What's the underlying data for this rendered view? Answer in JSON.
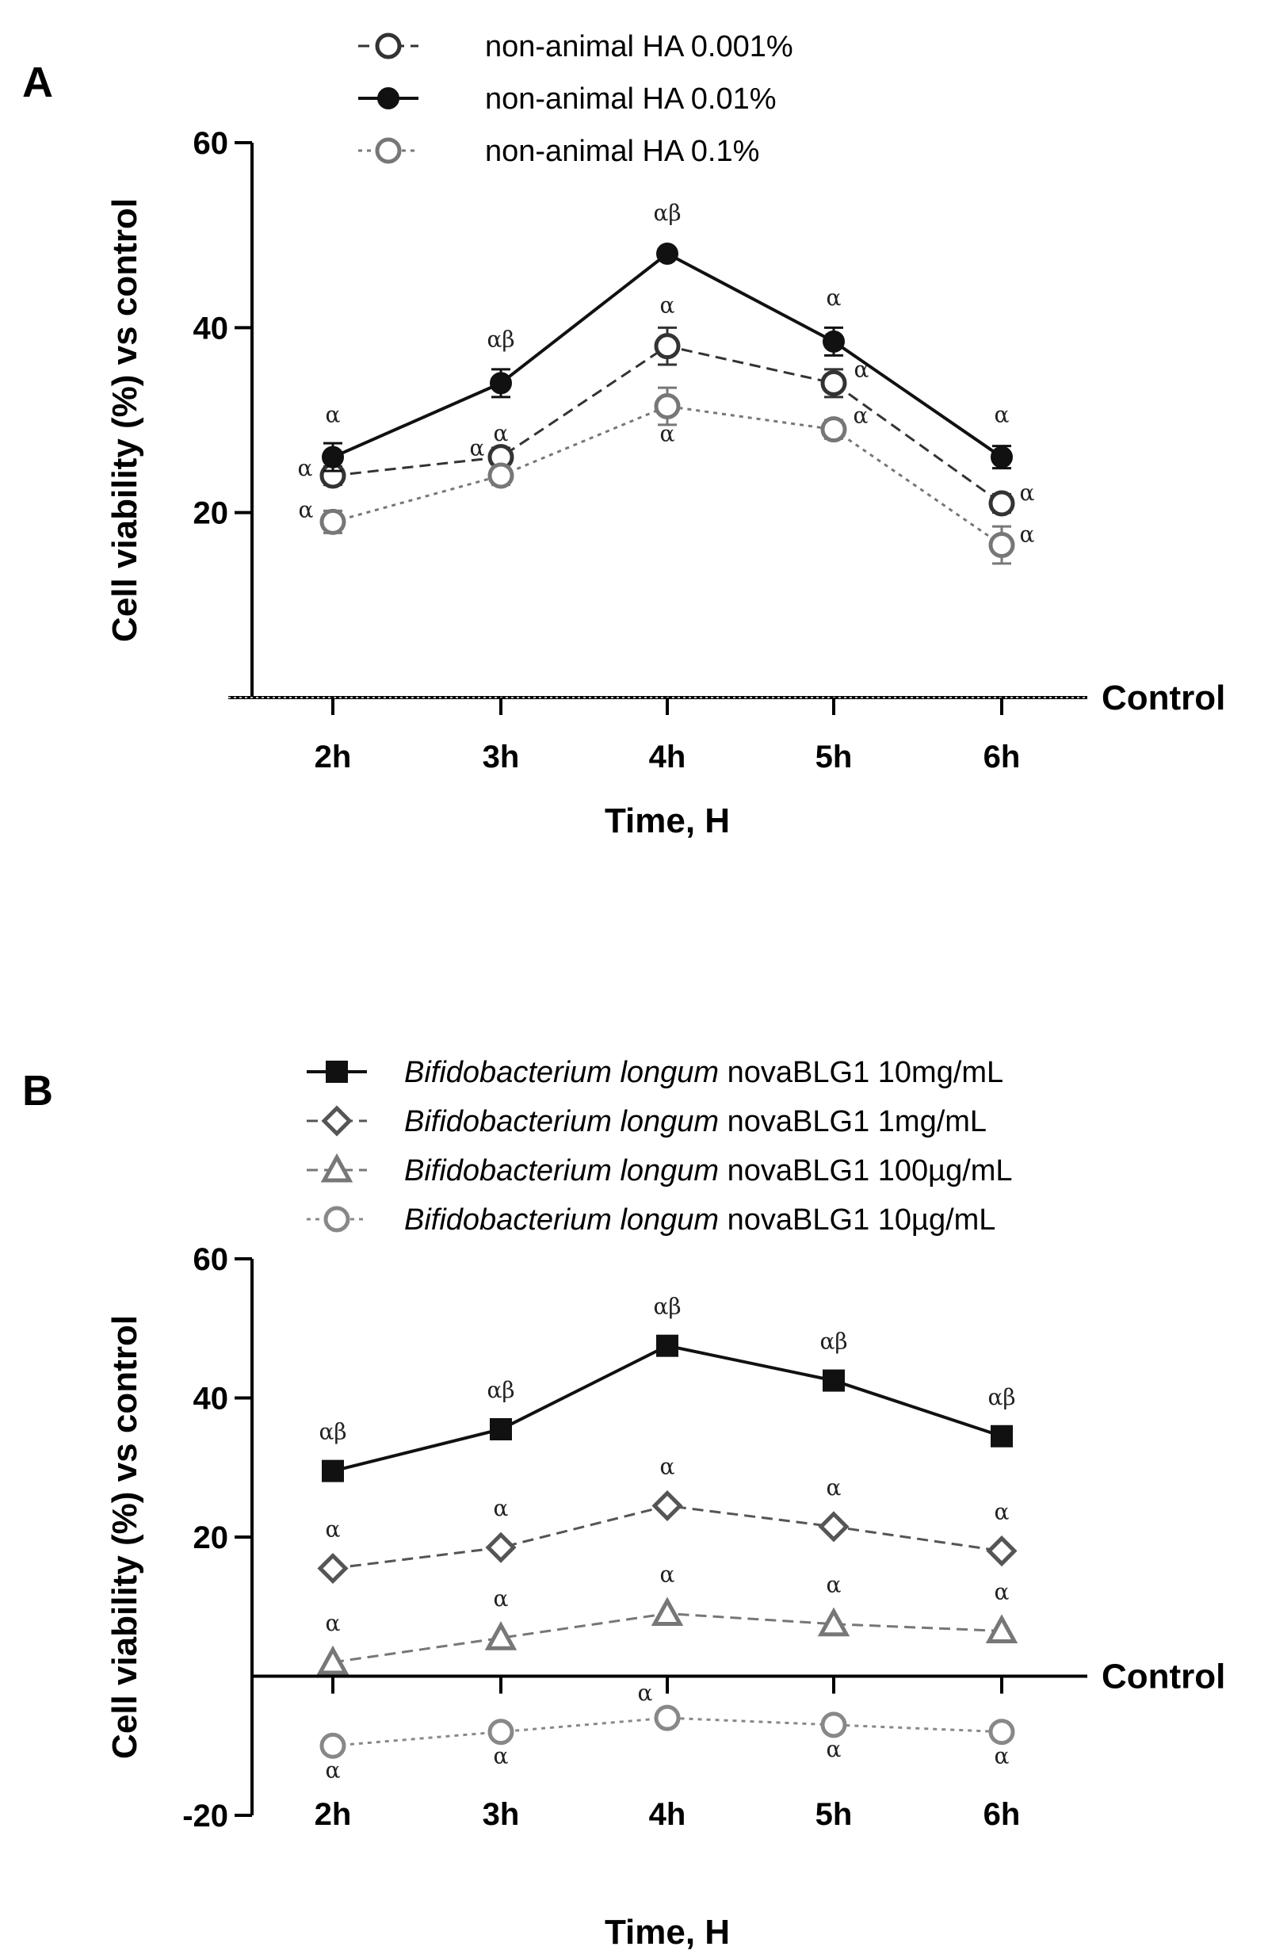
{
  "chart_data": [
    {
      "panel": "A",
      "type": "line",
      "ylabel": "Cell viability (%) vs control",
      "xlabel": "Time, H",
      "categories": [
        "2h",
        "3h",
        "4h",
        "5h",
        "6h"
      ],
      "ylim": [
        0,
        60
      ],
      "yticks": [
        20,
        40,
        60
      ],
      "reference_line": {
        "value": 0,
        "label": "Control"
      },
      "legend_position": "top",
      "series": [
        {
          "name": "non-animal HA 0.001%",
          "marker": "circle-open",
          "line_style": "dashed",
          "color": "#333333",
          "values": [
            24,
            26,
            38,
            34,
            21
          ],
          "errors": [
            1,
            1,
            2,
            1.5,
            1
          ],
          "annotations": [
            "α",
            "α",
            "α",
            "α",
            "α"
          ]
        },
        {
          "name": "non-animal HA 0.01%",
          "marker": "circle-filled",
          "line_style": "solid",
          "color": "#111111",
          "values": [
            26,
            34,
            48,
            38.5,
            26
          ],
          "errors": [
            1.5,
            1.5,
            0.5,
            1.5,
            1.2
          ],
          "annotations": [
            "α",
            "αβ",
            "αβ",
            "α",
            "α"
          ]
        },
        {
          "name": "non-animal HA 0.1%",
          "marker": "circle-open",
          "line_style": "dotted",
          "color": "#777777",
          "values": [
            19,
            24,
            31.5,
            29,
            16.5
          ],
          "errors": [
            1.2,
            1,
            2,
            1,
            2
          ],
          "annotations": [
            "α",
            "α",
            "α",
            "α",
            "α"
          ]
        }
      ]
    },
    {
      "panel": "B",
      "type": "line",
      "ylabel": "Cell viability (%) vs control",
      "xlabel": "Time, H",
      "categories": [
        "2h",
        "3h",
        "4h",
        "5h",
        "6h"
      ],
      "ylim": [
        -20,
        60
      ],
      "yticks": [
        -20,
        20,
        40,
        60
      ],
      "reference_line": {
        "value": 0,
        "label": "Control"
      },
      "legend_position": "top",
      "series": [
        {
          "name_italic": "Bifidobacterium longum",
          "name_rest": " novaBLG1 10mg/mL",
          "marker": "square-filled",
          "line_style": "solid",
          "color": "#111111",
          "values": [
            29.5,
            35.5,
            47.5,
            42.5,
            34.5
          ],
          "annotations": [
            "αβ",
            "αβ",
            "αβ",
            "αβ",
            "αβ"
          ]
        },
        {
          "name_italic": "Bifidobacterium longum",
          "name_rest": " novaBLG1 1mg/mL",
          "marker": "diamond-open",
          "line_style": "dashed",
          "color": "#555555",
          "values": [
            15.5,
            18.5,
            24.5,
            21.5,
            18
          ],
          "annotations": [
            "α",
            "α",
            "α",
            "α",
            "α"
          ]
        },
        {
          "name_italic": "Bifidobacterium longum",
          "name_rest": " novaBLG1 100µg/mL",
          "marker": "triangle-open",
          "line_style": "dashed",
          "color": "#777777",
          "values": [
            2,
            5.5,
            9,
            7.5,
            6.5
          ],
          "annotations": [
            "α",
            "α",
            "α",
            "α",
            "α"
          ]
        },
        {
          "name_italic": "Bifidobacterium longum",
          "name_rest": " novaBLG1 10µg/mL",
          "marker": "circle-open",
          "line_style": "dotted",
          "color": "#888888",
          "values": [
            -10,
            -8,
            -6,
            -7,
            -8
          ],
          "annotations": [
            "α",
            "α",
            "α",
            "α",
            "α"
          ]
        }
      ]
    }
  ]
}
